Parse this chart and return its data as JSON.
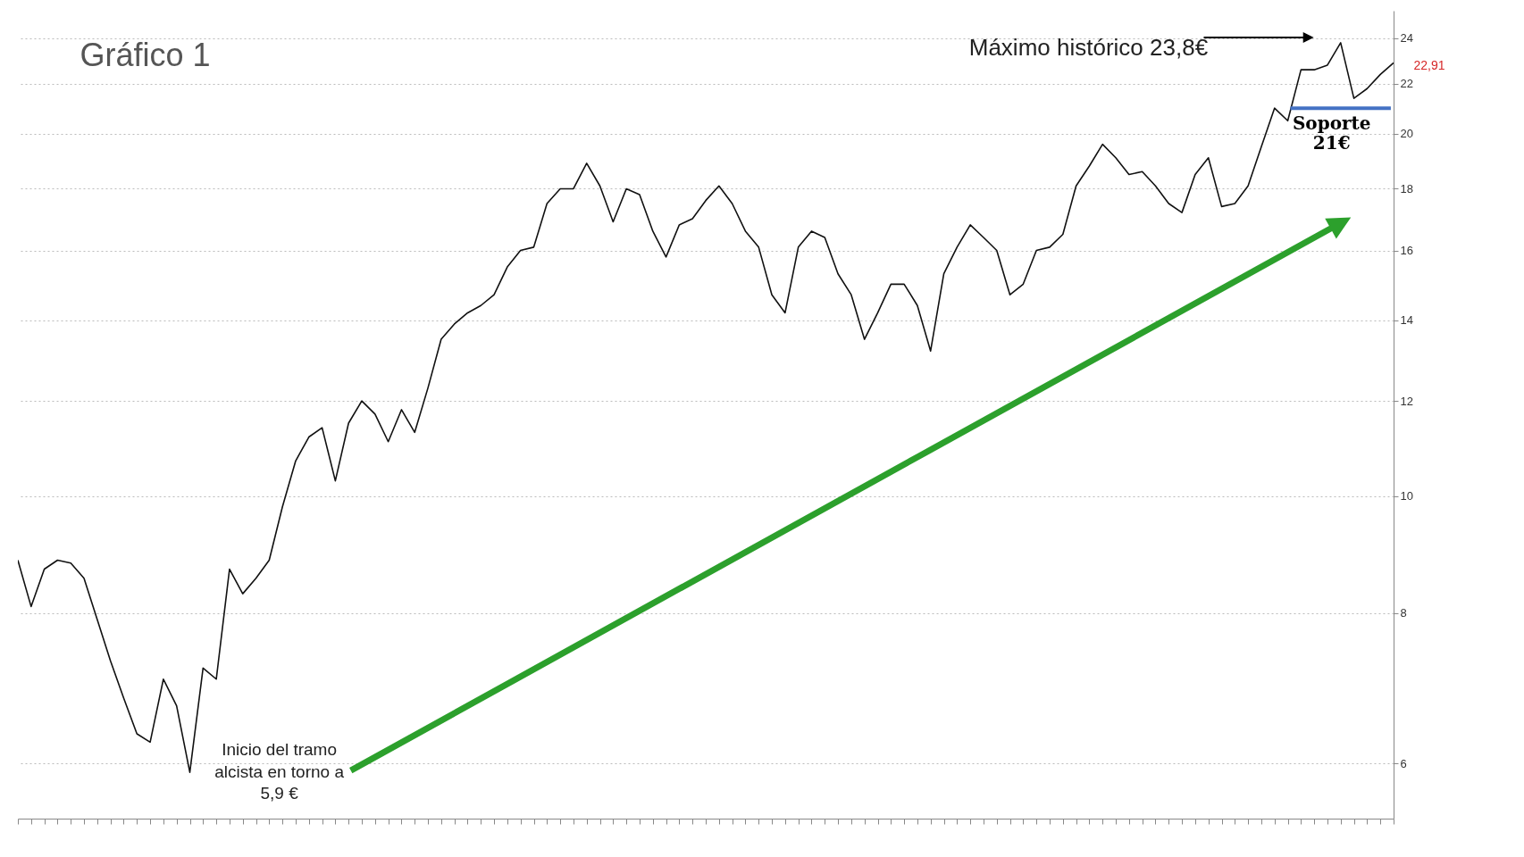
{
  "chart_data": {
    "type": "line",
    "title": "Gráfico 1",
    "log": "y",
    "grid": "y",
    "tick_labels": "y",
    "marker": "none",
    "line_style": "solid",
    "categories": [
      null,
      null,
      null,
      null,
      null,
      null,
      null,
      null,
      null,
      null,
      null,
      null,
      null,
      null,
      null,
      null,
      null,
      null,
      null,
      null,
      null,
      null,
      null,
      null,
      null,
      null,
      null,
      null,
      null,
      null,
      null,
      null,
      null,
      null,
      null,
      null,
      null,
      null,
      null,
      null,
      null,
      null,
      null,
      null,
      null,
      null,
      null,
      null,
      null,
      null,
      null,
      null,
      null,
      null,
      null,
      null,
      null,
      null,
      null,
      null,
      null,
      null,
      null,
      null,
      null,
      null,
      null,
      null,
      null,
      null,
      null,
      null,
      null,
      null,
      null,
      null,
      null,
      null,
      null,
      null,
      null,
      null,
      null,
      null,
      null,
      null,
      null,
      null,
      null,
      null,
      null,
      null,
      null,
      null,
      null,
      null,
      null,
      null,
      null,
      null,
      null,
      null,
      null,
      null,
      null
    ],
    "series": [
      {
        "color": "#111111",
        "values": [
          8.85,
          8.1,
          8.7,
          8.85,
          8.8,
          8.55,
          7.9,
          7.3,
          6.8,
          6.35,
          6.25,
          7.05,
          6.7,
          5.9,
          7.2,
          7.05,
          8.7,
          8.3,
          8.55,
          8.85,
          9.8,
          10.7,
          11.2,
          11.4,
          10.3,
          11.5,
          12.0,
          11.7,
          11.1,
          11.8,
          11.3,
          12.3,
          13.5,
          13.9,
          14.2,
          14.4,
          14.7,
          15.5,
          16.0,
          16.1,
          17.5,
          18.0,
          18.0,
          18.9,
          18.1,
          16.9,
          18.0,
          17.8,
          16.6,
          15.8,
          16.8,
          17.0,
          17.6,
          18.1,
          17.5,
          16.6,
          16.1,
          14.7,
          14.2,
          16.1,
          16.6,
          16.4,
          15.3,
          14.7,
          13.5,
          14.2,
          15.0,
          15.0,
          14.4,
          13.2,
          15.3,
          16.1,
          16.8,
          16.4,
          16.0,
          14.7,
          15.0,
          16.0,
          16.1,
          16.5,
          18.1,
          18.8,
          19.6,
          19.1,
          18.5,
          18.6,
          18.1,
          17.5,
          17.2,
          18.5,
          19.1,
          17.4,
          17.5,
          18.1,
          19.5,
          21.0,
          20.5,
          22.6,
          22.6,
          22.8,
          23.8,
          21.4,
          21.8,
          22.4,
          22.9
        ]
      }
    ],
    "ylim": [
      5.4,
      25.3
    ],
    "yticks": [
      6,
      8,
      10,
      12,
      14,
      16,
      18,
      20,
      22,
      24
    ],
    "ref_lines": [
      {
        "axis": "y",
        "value": 21,
        "label": "Soporte\n21€",
        "color": "#4472c4"
      }
    ],
    "annotations": [
      "Máximo histórico 23,8€",
      "Inicio del tramo\nalcista en torno a\n5,9 €",
      "22,91"
    ]
  }
}
